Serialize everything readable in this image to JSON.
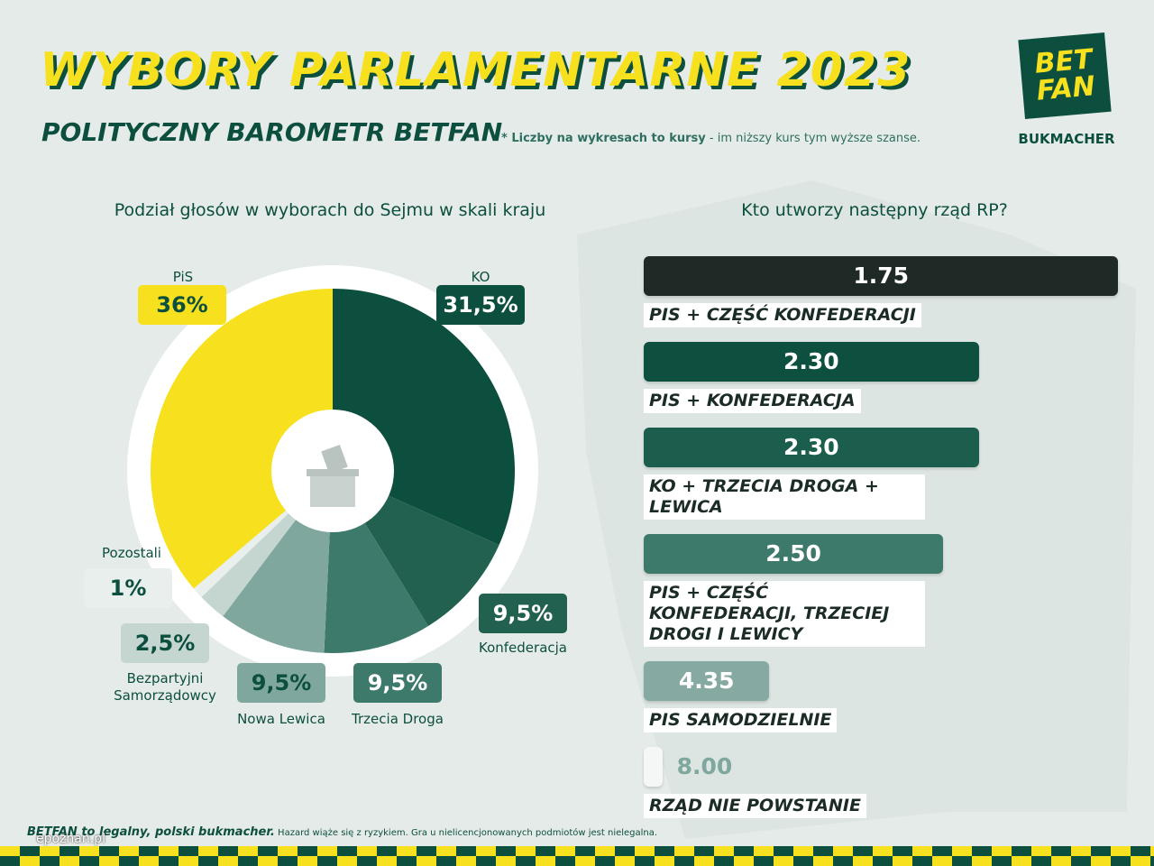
{
  "header": {
    "title": "WYBORY PARLAMENTARNE 2023",
    "subtitle": "POLITYCZNY BAROMETR BETFAN",
    "note_bold": "* Liczby na wykresach to kursy",
    "note": "- im niższy kurs tym wyższe szanse.",
    "logo_top": "BET",
    "logo_bottom": "FAN",
    "logo_caption": "BUKMACHER"
  },
  "chart_data": [
    {
      "type": "pie",
      "title": "Podział głosów w wyborach do Sejmu w skali kraju",
      "categories": [
        "PiS",
        "KO",
        "Konfederacja",
        "Trzecia Droga",
        "Nowa Lewica",
        "Bezpartyjni Samorządowcy",
        "Pozostali"
      ],
      "values": [
        36,
        31.5,
        9.5,
        9.5,
        9.5,
        2.5,
        1
      ],
      "value_labels": [
        "36%",
        "31,5%",
        "9,5%",
        "9,5%",
        "9,5%",
        "2,5%",
        "1%"
      ],
      "colors": [
        "#f7e11e",
        "#0d4f3e",
        "#22614f",
        "#3d7a6b",
        "#7fa79e",
        "#c5d6d1",
        "#e8efec"
      ]
    },
    {
      "type": "bar",
      "orientation": "horizontal",
      "title": "Kto utworzy następny rząd RP?",
      "categories": [
        "PIS + CZĘŚĆ KONFEDERACJI",
        "PIS + KONFEDERACJA",
        "KO + TRZECIA DROGA + LEWICA",
        "PIS + CZĘŚĆ KONFEDERACJI, TRZECIEJ DROGI I LEWICY",
        "PIS SAMODZIELNIE",
        "RZĄD NIE POWSTANIE"
      ],
      "values": [
        1.75,
        2.3,
        2.3,
        2.5,
        4.35,
        8
      ],
      "value_labels": [
        "1.75",
        "2.30",
        "2.30",
        "2.50",
        "4.35",
        "8.00"
      ],
      "colors": [
        "#1f2a26",
        "#0d5040",
        "#1c5e4e",
        "#3e7a6c",
        "#86aaa2",
        "#f4f7f6"
      ]
    }
  ],
  "footer": {
    "bold": "BETFAN to legalny, polski bukmacher.",
    "text": "Hazard wiąże się z ryzykiem. Gra u nielicencjonowanych podmiotów jest nielegalna.",
    "watermark": "epoznan.pl"
  }
}
